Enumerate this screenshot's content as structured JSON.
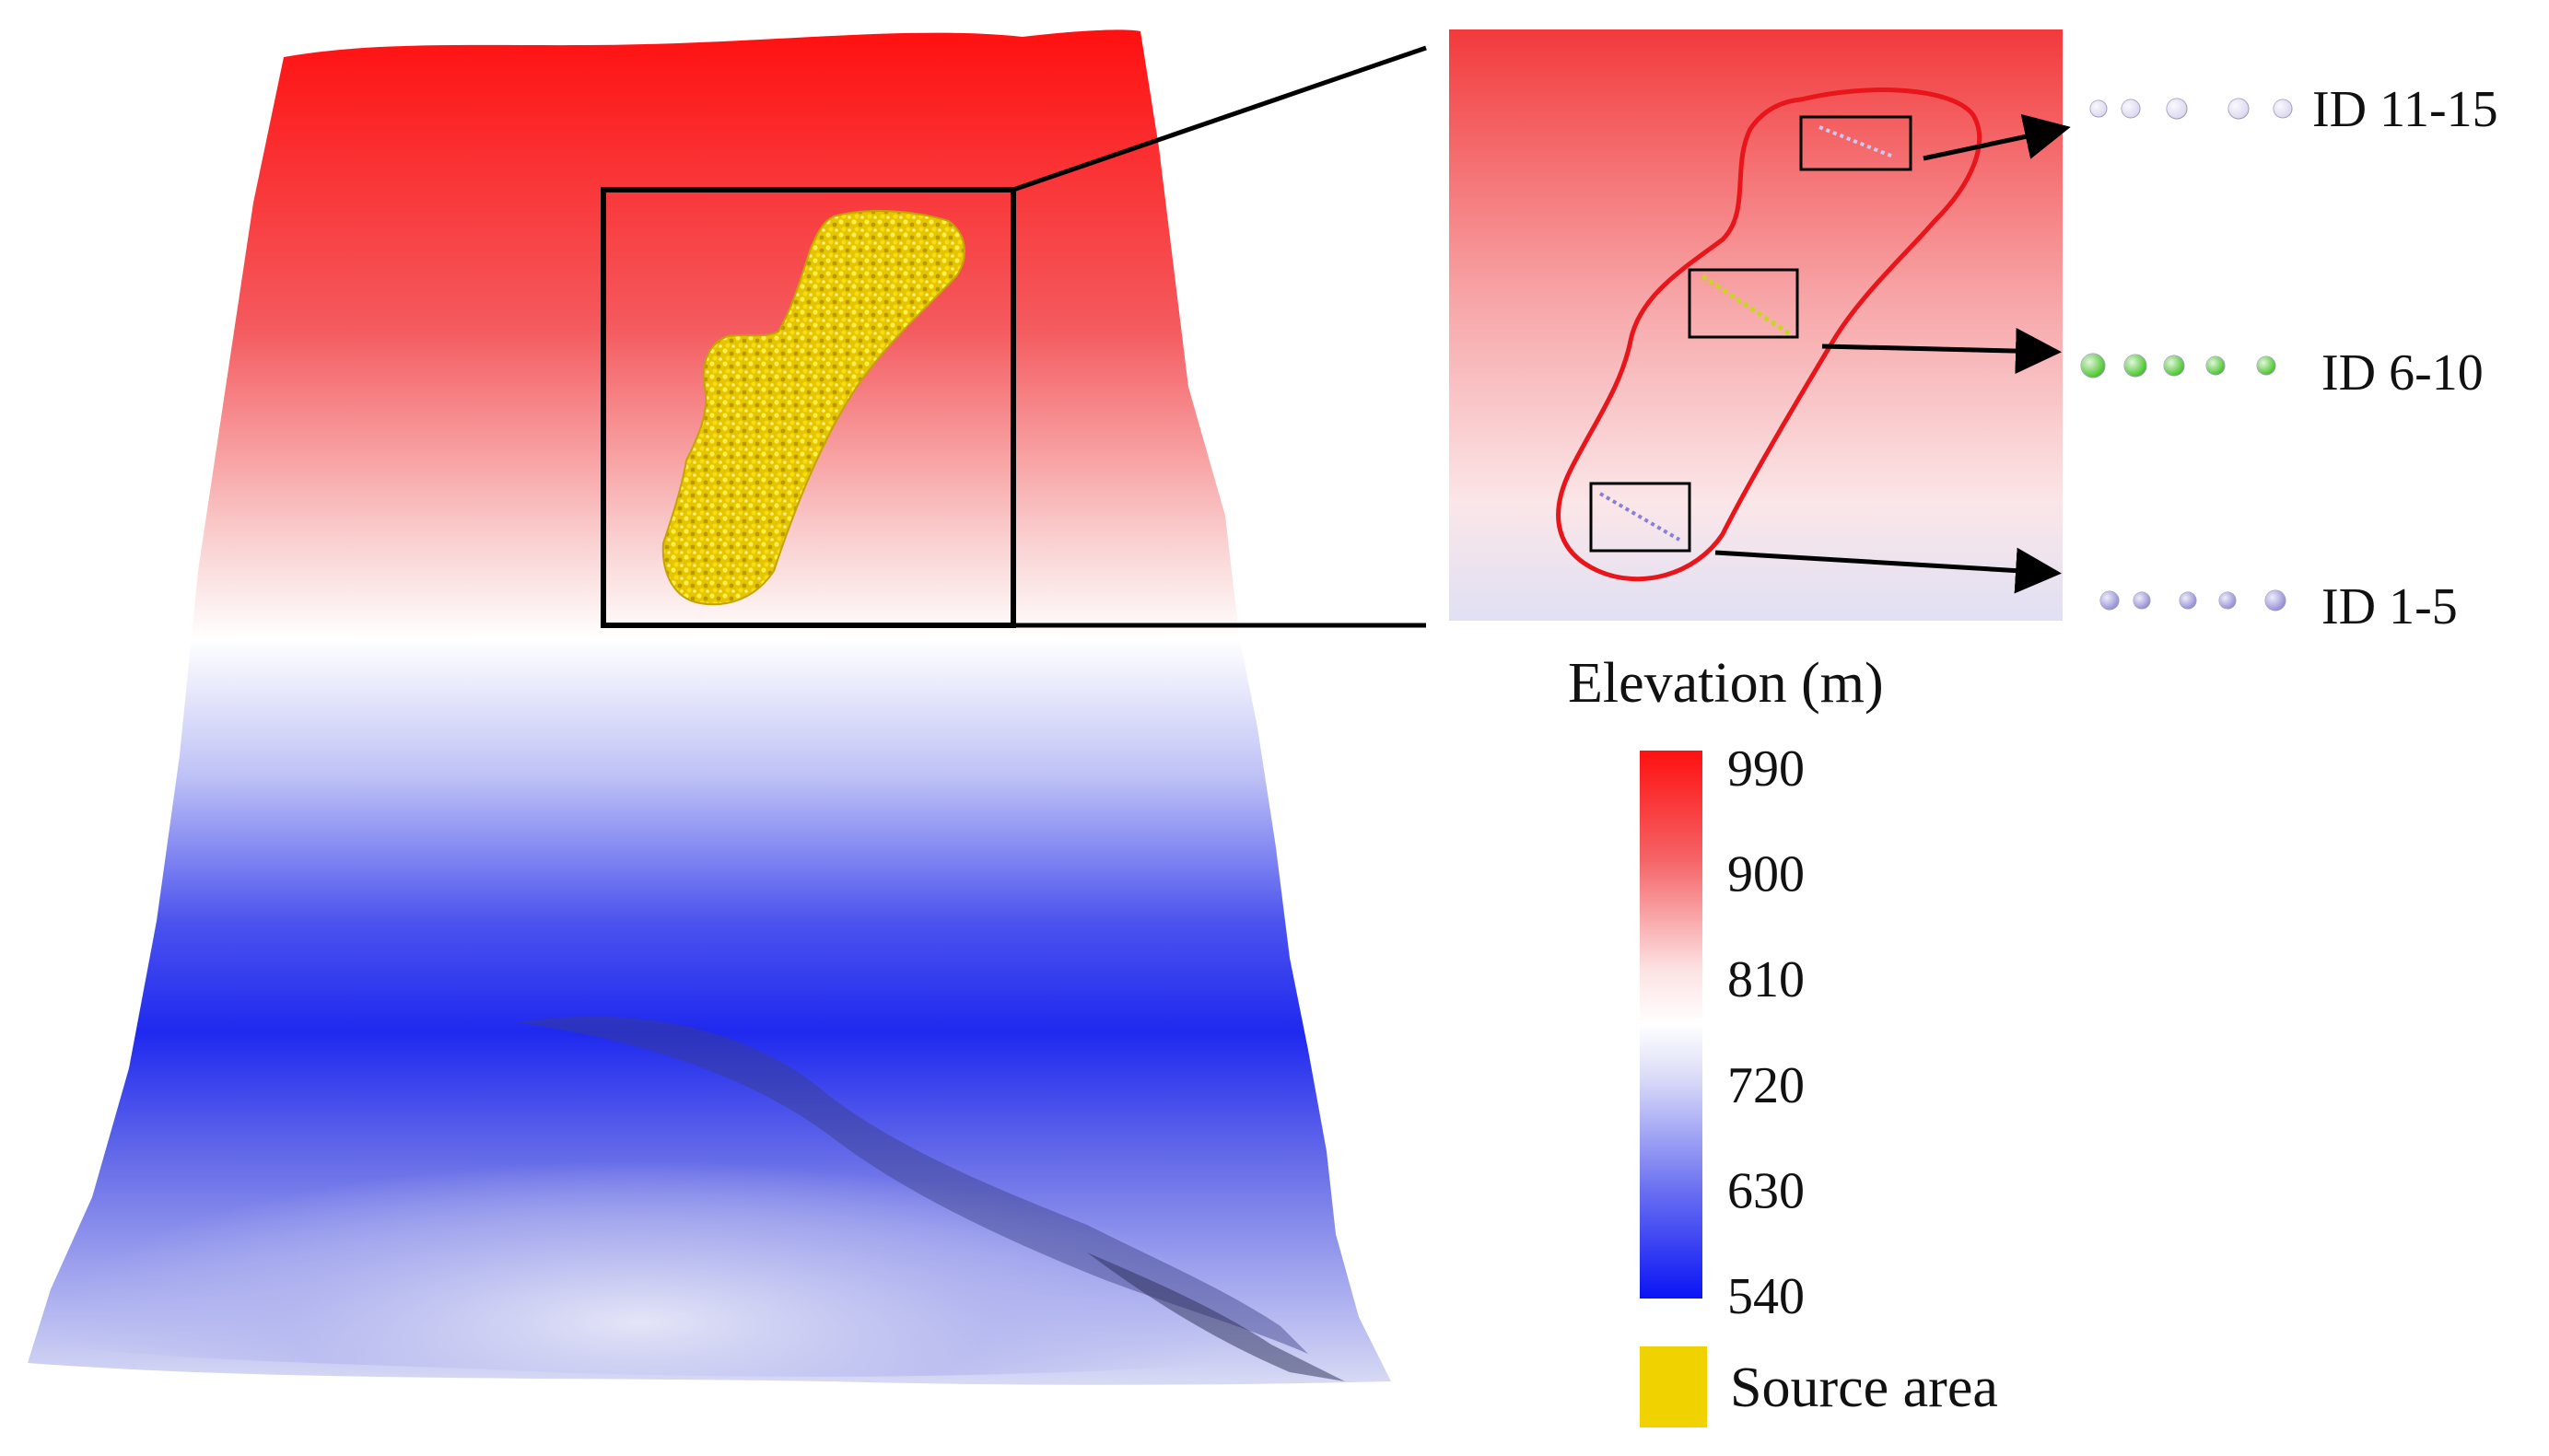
{
  "colorbar": {
    "title": "Elevation (m)",
    "ticks": [
      "990",
      "900",
      "810",
      "720",
      "630",
      "540"
    ],
    "colors": {
      "high": "#ff1010",
      "mid": "#ffffff",
      "low": "#0a14f5"
    }
  },
  "source_area": {
    "label": "Source area",
    "color": "#f0d200"
  },
  "particle_groups": [
    {
      "label": "ID 11-15",
      "color": "#d9d6ee"
    },
    {
      "label": "ID 6-10",
      "color": "#3fc21e"
    },
    {
      "label": "ID 1-5",
      "color": "#8f8ad6"
    }
  ]
}
